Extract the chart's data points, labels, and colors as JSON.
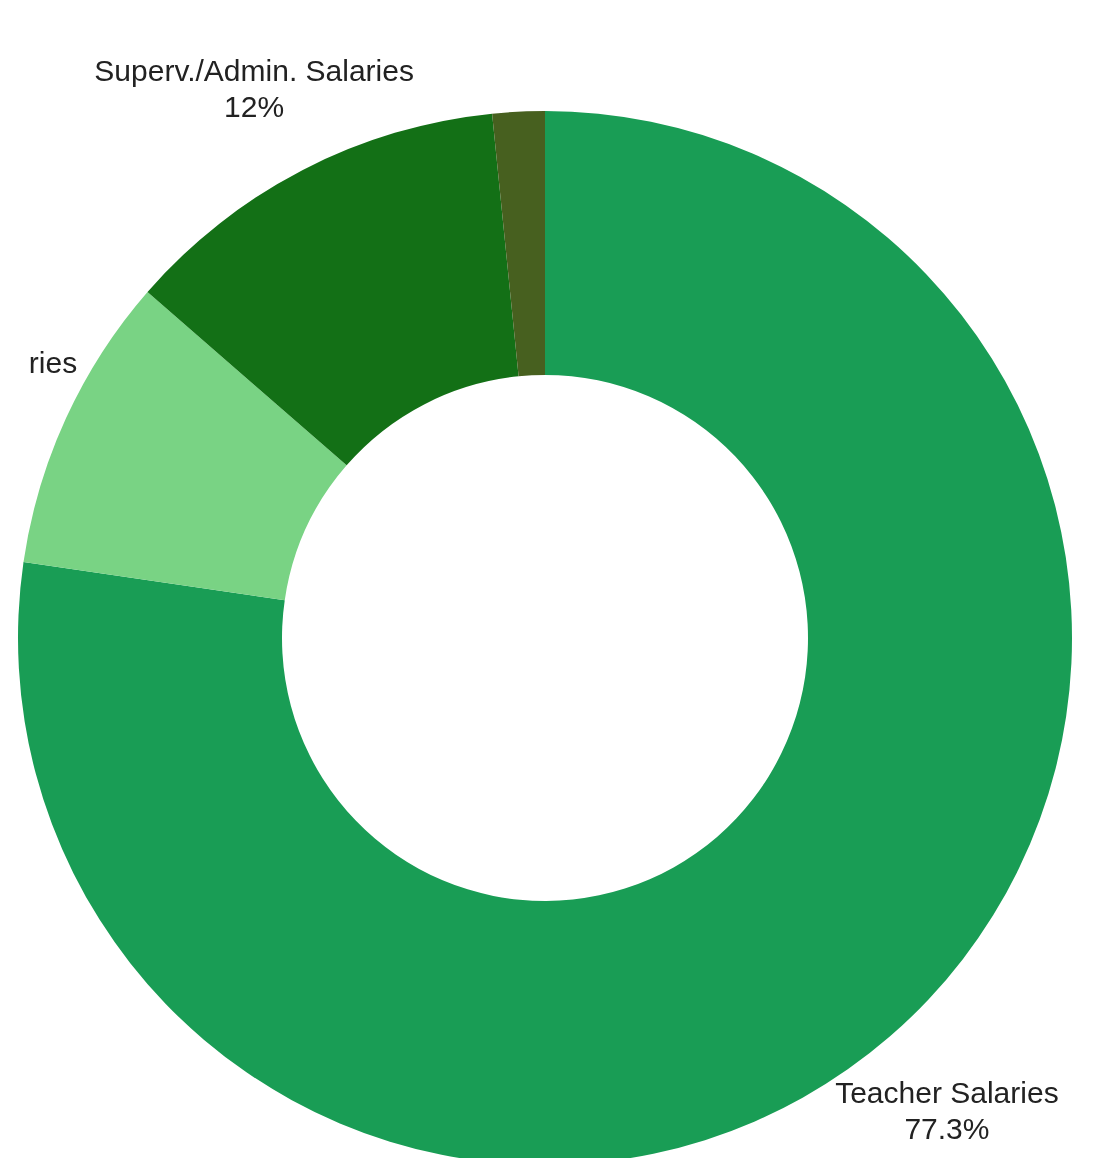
{
  "chart_data": {
    "type": "donut",
    "categories": [
      "Teacher Salaries",
      "ries",
      "Superv./Admin. Salaries",
      null
    ],
    "values": [
      77.3,
      9.1,
      12,
      1.6
    ],
    "colors": [
      "#199d55",
      "#79d384",
      "#137016",
      "#47601f"
    ],
    "value_labels": [
      "77.3%",
      null,
      "12%",
      null
    ]
  }
}
